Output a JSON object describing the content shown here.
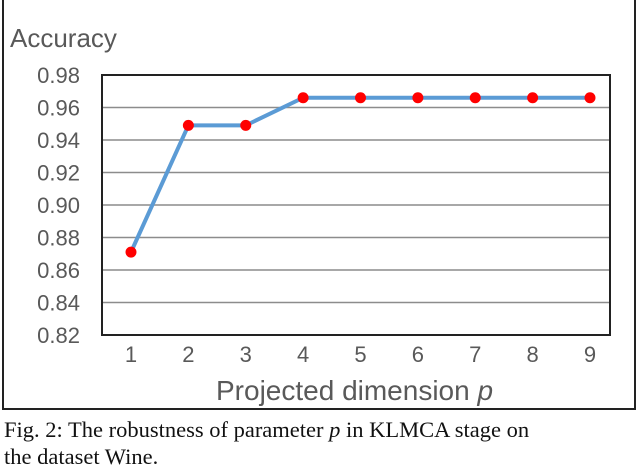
{
  "chart_data": {
    "type": "line",
    "ylabel": "Accuracy",
    "xlabel": "Projected dimension",
    "xlabel_symbol": "p",
    "categories": [
      "1",
      "2",
      "3",
      "4",
      "5",
      "6",
      "7",
      "8",
      "9"
    ],
    "values": [
      0.871,
      0.949,
      0.949,
      0.966,
      0.966,
      0.966,
      0.966,
      0.966,
      0.966
    ],
    "ylim": [
      0.82,
      0.98
    ],
    "yticks": [
      "0.82",
      "0.84",
      "0.86",
      "0.88",
      "0.90",
      "0.92",
      "0.94",
      "0.96",
      "0.98"
    ],
    "grid": true,
    "line_color": "#5b9bd5",
    "marker_color": "#ff0000"
  },
  "caption": {
    "prefix": "Fig. 2: The robustness of parameter ",
    "symbol": "p",
    "suffix": " in KLMCA stage on",
    "line2": "the dataset Wine."
  }
}
